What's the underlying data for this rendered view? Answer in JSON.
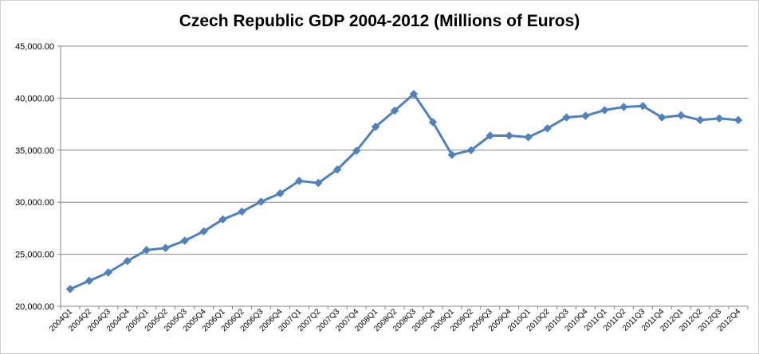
{
  "chart_data": {
    "type": "line",
    "title": "Czech Republic GDP 2004-2012 (Millions of Euros)",
    "xlabel": "",
    "ylabel": "",
    "ylim": [
      20000,
      45000
    ],
    "yticks": [
      "20,000.00",
      "25,000.00",
      "30,000.00",
      "35,000.00",
      "40,000.00",
      "45,000.00"
    ],
    "grid": "horizontal",
    "legend": "none",
    "categories": [
      "2004Q1",
      "2004Q2",
      "2004Q3",
      "2004Q4",
      "2005Q1",
      "2005Q2",
      "2005Q3",
      "2005Q4",
      "2006Q1",
      "2006Q2",
      "2006Q3",
      "2006Q4",
      "2007Q1",
      "2007Q2",
      "2007Q3",
      "2007Q4",
      "2008Q1",
      "2008Q2",
      "2008Q3",
      "2008Q4",
      "2009Q1",
      "2009Q2",
      "2009Q3",
      "2009Q4",
      "2010Q1",
      "2010Q2",
      "2010Q3",
      "2010Q4",
      "2011Q1",
      "2011Q2",
      "2011Q3",
      "2011Q4",
      "2012Q1",
      "2012Q2",
      "2012Q3",
      "2012Q4"
    ],
    "series": [
      {
        "color": "#4f81bd",
        "values": [
          21650,
          22450,
          23250,
          24350,
          25400,
          25600,
          26300,
          27200,
          28350,
          29100,
          30050,
          30850,
          32050,
          31850,
          33150,
          34950,
          37250,
          38800,
          40400,
          37700,
          34550,
          35000,
          36400,
          36400,
          36250,
          37100,
          38150,
          38300,
          38850,
          39150,
          39250,
          38150,
          38350,
          37900,
          38050,
          37900
        ]
      }
    ]
  }
}
